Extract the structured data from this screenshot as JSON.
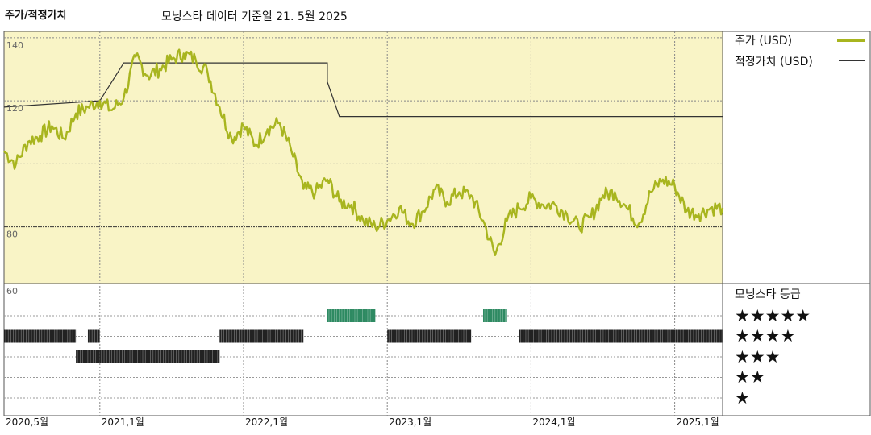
{
  "header": {
    "title": "주가/적정가치",
    "subtitle": "모닝스타 데이터 기준일 21. 5월 2025"
  },
  "legend": {
    "price_label": "주가 (USD)",
    "fair_label": "적정가치 (USD)",
    "rating_title": "모닝스타 등급",
    "price_color": "#a8b51f",
    "fair_color": "#333333",
    "plot_bg": "#f9f4c6",
    "buy_color": "#2e8a62",
    "neutral_color": "#222222"
  },
  "star_rows": [
    "★★★★★",
    "★★★★",
    "★★★",
    "★★",
    "★"
  ],
  "chart_data": {
    "type": "line",
    "y_ticks": [
      "140",
      "120",
      "80",
      "60"
    ],
    "x_ticks": [
      "2020,5월",
      "2021,1월",
      "2022,1월",
      "2023,1월",
      "2024,1월",
      "2025,1월"
    ],
    "x_tick_dates": [
      "2020-05",
      "2021-01",
      "2022-01",
      "2023-01",
      "2024-01",
      "2025-01"
    ],
    "x_range": [
      "2020-05",
      "2025-05"
    ],
    "ylim": [
      62,
      142
    ],
    "reference_line": 80,
    "series": [
      {
        "name": "주가 (USD)",
        "points": [
          [
            "2020-05",
            104
          ],
          [
            "2020-06",
            100
          ],
          [
            "2020-07",
            107
          ],
          [
            "2020-08",
            109
          ],
          [
            "2020-09",
            112
          ],
          [
            "2020-10",
            108
          ],
          [
            "2020-11",
            116
          ],
          [
            "2020-12",
            118
          ],
          [
            "2021-01",
            120
          ],
          [
            "2021-02",
            117
          ],
          [
            "2021-03",
            121
          ],
          [
            "2021-04",
            134
          ],
          [
            "2021-05",
            128
          ],
          [
            "2021-06",
            130
          ],
          [
            "2021-07",
            133
          ],
          [
            "2021-08",
            135
          ],
          [
            "2021-09",
            133
          ],
          [
            "2021-10",
            129
          ],
          [
            "2021-11",
            118
          ],
          [
            "2021-12",
            108
          ],
          [
            "2022-01",
            112
          ],
          [
            "2022-02",
            106
          ],
          [
            "2022-03",
            111
          ],
          [
            "2022-04",
            113
          ],
          [
            "2022-05",
            104
          ],
          [
            "2022-06",
            92
          ],
          [
            "2022-07",
            91
          ],
          [
            "2022-08",
            95
          ],
          [
            "2022-09",
            88
          ],
          [
            "2022-10",
            87
          ],
          [
            "2022-11",
            82
          ],
          [
            "2022-12",
            80
          ],
          [
            "2023-01",
            82
          ],
          [
            "2023-02",
            86
          ],
          [
            "2023-03",
            81
          ],
          [
            "2023-04",
            85
          ],
          [
            "2023-05",
            92
          ],
          [
            "2023-06",
            88
          ],
          [
            "2023-07",
            91
          ],
          [
            "2023-08",
            90
          ],
          [
            "2023-09",
            82
          ],
          [
            "2023-10",
            71
          ],
          [
            "2023-11",
            82
          ],
          [
            "2023-12",
            86
          ],
          [
            "2024-01",
            89
          ],
          [
            "2024-02",
            87
          ],
          [
            "2024-03",
            87
          ],
          [
            "2024-04",
            84
          ],
          [
            "2024-05",
            80
          ],
          [
            "2024-06",
            83
          ],
          [
            "2024-07",
            90
          ],
          [
            "2024-08",
            91
          ],
          [
            "2024-09",
            86
          ],
          [
            "2024-10",
            81
          ],
          [
            "2024-11",
            91
          ],
          [
            "2024-12",
            95
          ],
          [
            "2025-01",
            93
          ],
          [
            "2025-02",
            85
          ],
          [
            "2025-03",
            84
          ],
          [
            "2025-04",
            86
          ],
          [
            "2025-05",
            86
          ]
        ]
      },
      {
        "name": "적정가치 (USD)",
        "step_points": [
          [
            "2020-05",
            118
          ],
          [
            "2021-01",
            120
          ],
          [
            "2021-03",
            132
          ],
          [
            "2022-08",
            132
          ],
          [
            "2022-08",
            126
          ],
          [
            "2022-09",
            115
          ],
          [
            "2025-05",
            115
          ]
        ]
      }
    ],
    "star_rating_periods": [
      {
        "stars": 4,
        "from": "2020-05",
        "to": "2020-11"
      },
      {
        "stars": 3,
        "from": "2020-11",
        "to": "2021-01"
      },
      {
        "stars": 4,
        "from": "2020-12",
        "to": "2021-01"
      },
      {
        "stars": 3,
        "from": "2021-01",
        "to": "2021-11"
      },
      {
        "stars": 4,
        "from": "2021-11",
        "to": "2022-06"
      },
      {
        "stars": 5,
        "from": "2022-08",
        "to": "2022-12"
      },
      {
        "stars": 4,
        "from": "2023-01",
        "to": "2023-08"
      },
      {
        "stars": 5,
        "from": "2023-09",
        "to": "2023-11"
      },
      {
        "stars": 4,
        "from": "2023-12",
        "to": "2025-05"
      }
    ]
  }
}
